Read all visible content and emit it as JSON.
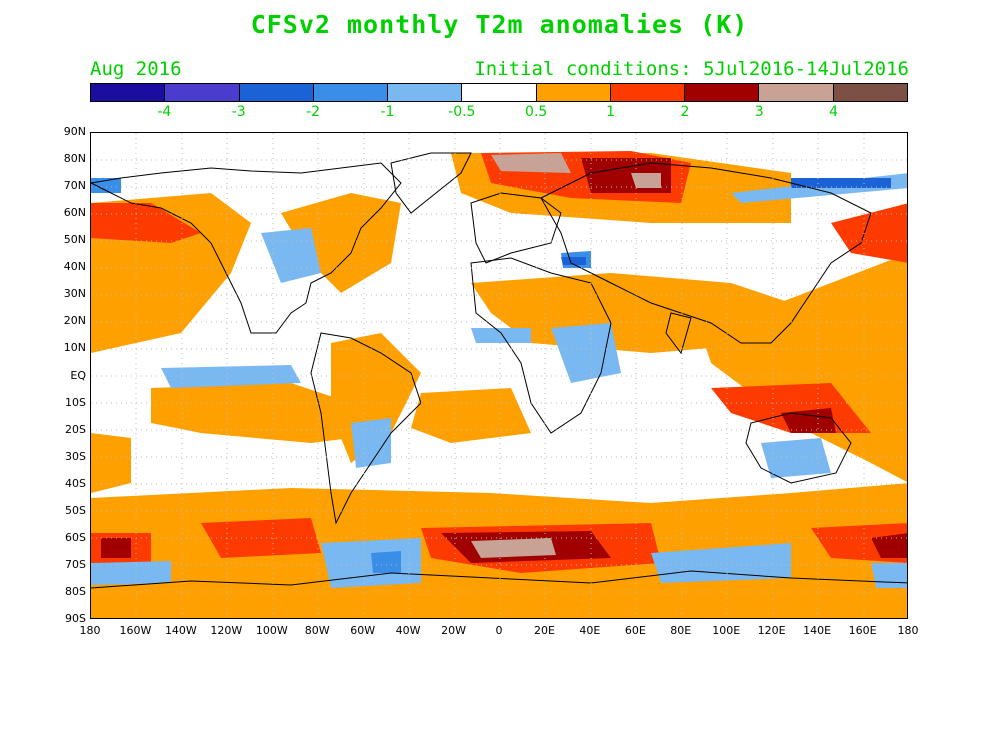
{
  "title": "CFSv2 monthly T2m anomalies (K)",
  "month_label": "Aug 2016",
  "initial_conditions": "Initial conditions: 5Jul2016-14Jul2016",
  "colorbar": {
    "colors": [
      "#1a0da0",
      "#4a3ccc",
      "#1a62d6",
      "#3a8ee8",
      "#7ab8f2",
      "#ffffff",
      "#fda000",
      "#fd3a00",
      "#a00000",
      "#c8a294",
      "#7c5044"
    ],
    "labels": [
      "-4",
      "-3",
      "-2",
      "-1",
      "-0.5",
      "0.5",
      "1",
      "2",
      "3",
      "4"
    ]
  },
  "axes": {
    "lat_labels": [
      "90N",
      "80N",
      "70N",
      "60N",
      "50N",
      "40N",
      "30N",
      "20N",
      "10N",
      "EQ",
      "10S",
      "20S",
      "30S",
      "40S",
      "50S",
      "60S",
      "70S",
      "80S",
      "90S"
    ],
    "lon_labels": [
      "180",
      "160W",
      "140W",
      "120W",
      "100W",
      "80W",
      "60W",
      "40W",
      "20W",
      "0",
      "20E",
      "40E",
      "60E",
      "80E",
      "100E",
      "120E",
      "140E",
      "160E",
      "180"
    ]
  },
  "colors": {
    "text": "#00d000",
    "orange": "#fda000",
    "red": "#fd3a00",
    "darkred": "#a00000",
    "pink": "#c8a294",
    "lightblue": "#7ab8f2",
    "blue": "#3a8ee8",
    "darkblue": "#1a62d6"
  }
}
